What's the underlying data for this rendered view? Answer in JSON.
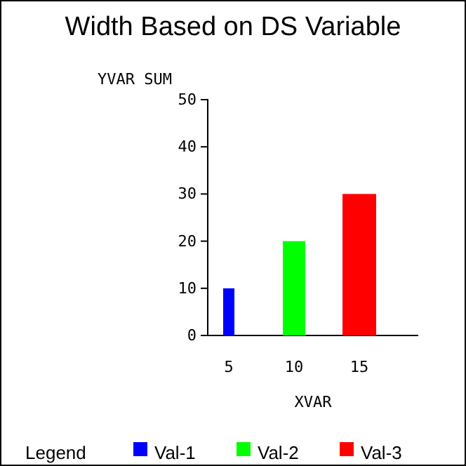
{
  "chart_data": {
    "type": "bar",
    "title": "Width Based on DS Variable",
    "xlabel": "XVAR",
    "ylabel": "YVAR SUM",
    "legend_title": "Legend",
    "categories": [
      "5",
      "10",
      "15"
    ],
    "series": [
      {
        "name": "Val-1",
        "color": "#0000ff",
        "values": [
          10,
          null,
          null
        ]
      },
      {
        "name": "Val-2",
        "color": "#00ff00",
        "values": [
          null,
          20,
          null
        ]
      },
      {
        "name": "Val-3",
        "color": "#ff0000",
        "values": [
          null,
          null,
          30
        ]
      }
    ],
    "ylim": [
      0,
      50
    ],
    "yticks": [
      0,
      10,
      20,
      30,
      40,
      50
    ],
    "legend": "bottom"
  }
}
